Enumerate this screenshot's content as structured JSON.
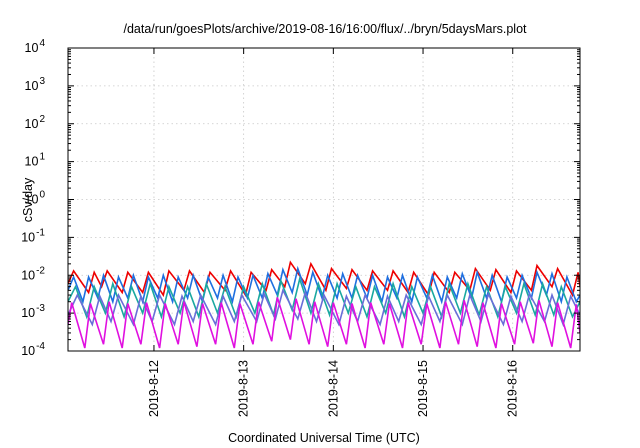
{
  "chart_data": {
    "type": "line",
    "title": "/data/run/goesPlots/archive/2019-08-16/16:00/flux/../bryn/5daysMars.plot",
    "xlabel": "Coordinated Universal Time (UTC)",
    "ylabel": "cSv/day",
    "yscale": "log",
    "ylim": [
      0.0001,
      10000
    ],
    "xlim": [
      "2019-08-11T01:00",
      "2019-08-16T18:00"
    ],
    "grid": true,
    "y_ticks": [
      {
        "value": 0.0001,
        "base": "10",
        "exp": "-4"
      },
      {
        "value": 0.001,
        "base": "10",
        "exp": "-3"
      },
      {
        "value": 0.01,
        "base": "10",
        "exp": "-2"
      },
      {
        "value": 0.1,
        "base": "10",
        "exp": "-1"
      },
      {
        "value": 1,
        "base": "10",
        "exp": "0"
      },
      {
        "value": 10,
        "base": "10",
        "exp": "1"
      },
      {
        "value": 100,
        "base": "10",
        "exp": "2"
      },
      {
        "value": 1000,
        "base": "10",
        "exp": "3"
      },
      {
        "value": 10000,
        "base": "10",
        "exp": "4"
      }
    ],
    "x_ticks": [
      {
        "value": "2019-08-12T00:00",
        "label": "2019-8-12"
      },
      {
        "value": "2019-08-13T00:00",
        "label": "2019-8-13"
      },
      {
        "value": "2019-08-14T00:00",
        "label": "2019-8-14"
      },
      {
        "value": "2019-08-15T00:00",
        "label": "2019-8-15"
      },
      {
        "value": "2019-08-16T00:00",
        "label": "2019-8-16"
      }
    ],
    "series": [
      {
        "color": "#ee0000",
        "x": [
          "2019-08-11T01:00",
          "2019-08-11T02:30",
          "2019-08-11T06:30",
          "2019-08-11T08:00",
          "2019-08-11T10:00",
          "2019-08-11T11:30",
          "2019-08-11T15:30",
          "2019-08-11T17:00",
          "2019-08-11T21:00",
          "2019-08-11T22:30",
          "2019-08-12T02:30",
          "2019-08-12T04:00",
          "2019-08-12T08:00",
          "2019-08-12T09:30",
          "2019-08-12T13:30",
          "2019-08-12T15:00",
          "2019-08-12T19:00",
          "2019-08-12T20:30",
          "2019-08-13T00:30",
          "2019-08-13T02:00",
          "2019-08-13T06:00",
          "2019-08-13T07:30",
          "2019-08-13T11:00",
          "2019-08-13T12:30",
          "2019-08-13T16:30",
          "2019-08-13T18:00",
          "2019-08-13T22:00",
          "2019-08-13T23:30",
          "2019-08-14T03:30",
          "2019-08-14T05:00",
          "2019-08-14T09:00",
          "2019-08-14T10:30",
          "2019-08-14T14:30",
          "2019-08-14T16:00",
          "2019-08-14T20:00",
          "2019-08-14T21:30",
          "2019-08-15T01:30",
          "2019-08-15T03:00",
          "2019-08-15T07:00",
          "2019-08-15T08:30",
          "2019-08-15T12:30",
          "2019-08-15T14:00",
          "2019-08-15T18:00",
          "2019-08-15T19:30",
          "2019-08-15T23:30",
          "2019-08-16T01:00",
          "2019-08-16T05:00",
          "2019-08-16T06:30",
          "2019-08-16T10:30",
          "2019-08-16T12:00",
          "2019-08-16T16:00",
          "2019-08-16T17:30",
          "2019-08-16T18:00"
        ],
        "y": [
          0.006,
          0.013,
          0.0035,
          0.012,
          0.005,
          0.013,
          0.0035,
          0.012,
          0.0035,
          0.012,
          0.003,
          0.013,
          0.004,
          0.013,
          0.0035,
          0.012,
          0.004,
          0.013,
          0.003,
          0.012,
          0.004,
          0.014,
          0.005,
          0.022,
          0.006,
          0.02,
          0.004,
          0.015,
          0.0045,
          0.014,
          0.004,
          0.013,
          0.004,
          0.013,
          0.0035,
          0.012,
          0.003,
          0.012,
          0.0035,
          0.012,
          0.004,
          0.015,
          0.004,
          0.014,
          0.0035,
          0.013,
          0.004,
          0.018,
          0.005,
          0.015,
          0.003,
          0.012,
          0.005
        ]
      },
      {
        "color": "#1e6fe0",
        "x": [
          "2019-08-11T01:00",
          "2019-08-11T02:30",
          "2019-08-11T05:00",
          "2019-08-11T06:30",
          "2019-08-11T09:00",
          "2019-08-11T10:30",
          "2019-08-11T13:00",
          "2019-08-11T14:30",
          "2019-08-11T17:00",
          "2019-08-11T18:30",
          "2019-08-11T21:00",
          "2019-08-11T22:30",
          "2019-08-12T01:00",
          "2019-08-12T02:30",
          "2019-08-12T05:00",
          "2019-08-12T06:30",
          "2019-08-12T09:00",
          "2019-08-12T10:30",
          "2019-08-12T13:00",
          "2019-08-12T14:30",
          "2019-08-12T17:00",
          "2019-08-12T18:30",
          "2019-08-12T21:00",
          "2019-08-12T22:30",
          "2019-08-13T01:00",
          "2019-08-13T02:30",
          "2019-08-13T05:00",
          "2019-08-13T06:30",
          "2019-08-13T09:00",
          "2019-08-13T10:30",
          "2019-08-13T13:00",
          "2019-08-13T14:30",
          "2019-08-13T17:00",
          "2019-08-13T18:30",
          "2019-08-13T21:00",
          "2019-08-13T22:30",
          "2019-08-14T01:00",
          "2019-08-14T02:30",
          "2019-08-14T05:00",
          "2019-08-14T06:30",
          "2019-08-14T09:00",
          "2019-08-14T10:30",
          "2019-08-14T13:00",
          "2019-08-14T14:30",
          "2019-08-14T17:00",
          "2019-08-14T18:30",
          "2019-08-14T21:00",
          "2019-08-14T22:30",
          "2019-08-15T01:00",
          "2019-08-15T02:30",
          "2019-08-15T05:00",
          "2019-08-15T06:30",
          "2019-08-15T09:00",
          "2019-08-15T10:30",
          "2019-08-15T13:00",
          "2019-08-15T14:30",
          "2019-08-15T17:00",
          "2019-08-15T18:30",
          "2019-08-15T21:00",
          "2019-08-15T22:30",
          "2019-08-16T01:00",
          "2019-08-16T02:30",
          "2019-08-16T05:00",
          "2019-08-16T06:30",
          "2019-08-16T09:00",
          "2019-08-16T10:30",
          "2019-08-16T13:00",
          "2019-08-16T14:30",
          "2019-08-16T17:00",
          "2019-08-16T18:00"
        ],
        "y": [
          0.004,
          0.009,
          0.002,
          0.009,
          0.0025,
          0.01,
          0.002,
          0.009,
          0.0025,
          0.01,
          0.002,
          0.009,
          0.0025,
          0.01,
          0.002,
          0.009,
          0.0025,
          0.01,
          0.002,
          0.009,
          0.0025,
          0.01,
          0.002,
          0.009,
          0.0025,
          0.01,
          0.0025,
          0.011,
          0.003,
          0.014,
          0.0035,
          0.015,
          0.003,
          0.012,
          0.0025,
          0.01,
          0.0025,
          0.011,
          0.0025,
          0.01,
          0.0025,
          0.01,
          0.002,
          0.009,
          0.0025,
          0.01,
          0.002,
          0.009,
          0.0025,
          0.01,
          0.002,
          0.009,
          0.0025,
          0.011,
          0.0025,
          0.012,
          0.0025,
          0.01,
          0.002,
          0.009,
          0.0025,
          0.01,
          0.0025,
          0.012,
          0.003,
          0.011,
          0.002,
          0.009,
          0.002,
          0.003
        ]
      },
      {
        "color": "#1aa8a0",
        "x": [
          "2019-08-11T01:00",
          "2019-08-11T03:00",
          "2019-08-11T06:00",
          "2019-08-11T08:00",
          "2019-08-11T11:00",
          "2019-08-11T13:00",
          "2019-08-11T16:00",
          "2019-08-11T18:00",
          "2019-08-11T21:00",
          "2019-08-11T23:00",
          "2019-08-12T02:00",
          "2019-08-12T04:00",
          "2019-08-12T07:00",
          "2019-08-12T09:00",
          "2019-08-12T12:00",
          "2019-08-12T14:00",
          "2019-08-12T17:00",
          "2019-08-12T19:00",
          "2019-08-12T22:00",
          "2019-08-13T00:00",
          "2019-08-13T03:00",
          "2019-08-13T05:00",
          "2019-08-13T08:00",
          "2019-08-13T10:00",
          "2019-08-13T13:00",
          "2019-08-13T15:00",
          "2019-08-13T18:00",
          "2019-08-13T20:00",
          "2019-08-13T23:00",
          "2019-08-14T01:00",
          "2019-08-14T04:00",
          "2019-08-14T06:00",
          "2019-08-14T09:00",
          "2019-08-14T11:00",
          "2019-08-14T14:00",
          "2019-08-14T16:00",
          "2019-08-14T19:00",
          "2019-08-14T21:00",
          "2019-08-15T00:00",
          "2019-08-15T02:00",
          "2019-08-15T05:00",
          "2019-08-15T07:00",
          "2019-08-15T10:00",
          "2019-08-15T12:00",
          "2019-08-15T15:00",
          "2019-08-15T17:00",
          "2019-08-15T20:00",
          "2019-08-15T22:00",
          "2019-08-16T01:00",
          "2019-08-16T03:00",
          "2019-08-16T06:00",
          "2019-08-16T08:00",
          "2019-08-16T11:00",
          "2019-08-16T13:00",
          "2019-08-16T16:00",
          "2019-08-16T18:00"
        ],
        "y": [
          0.002,
          0.005,
          0.0008,
          0.005,
          0.001,
          0.006,
          0.0008,
          0.005,
          0.001,
          0.006,
          0.0008,
          0.005,
          0.001,
          0.005,
          0.0008,
          0.006,
          0.001,
          0.005,
          0.0008,
          0.005,
          0.001,
          0.006,
          0.0009,
          0.007,
          0.0012,
          0.008,
          0.001,
          0.006,
          0.0009,
          0.006,
          0.001,
          0.005,
          0.0008,
          0.005,
          0.001,
          0.006,
          0.0008,
          0.005,
          0.001,
          0.005,
          0.0008,
          0.006,
          0.001,
          0.006,
          0.0009,
          0.005,
          0.0008,
          0.005,
          0.001,
          0.006,
          0.0009,
          0.006,
          0.0009,
          0.005,
          0.0008,
          0.002
        ]
      },
      {
        "color": "#6a6ed8",
        "x": [
          "2019-08-11T01:00",
          "2019-08-11T03:30",
          "2019-08-11T07:30",
          "2019-08-11T09:30",
          "2019-08-11T12:30",
          "2019-08-11T14:30",
          "2019-08-11T18:30",
          "2019-08-11T20:30",
          "2019-08-11T23:30",
          "2019-08-12T01:30",
          "2019-08-12T05:30",
          "2019-08-12T07:30",
          "2019-08-12T10:30",
          "2019-08-12T12:30",
          "2019-08-12T16:30",
          "2019-08-12T18:30",
          "2019-08-12T21:30",
          "2019-08-12T23:30",
          "2019-08-13T03:30",
          "2019-08-13T05:30",
          "2019-08-13T08:30",
          "2019-08-13T10:30",
          "2019-08-13T14:30",
          "2019-08-13T16:30",
          "2019-08-13T19:30",
          "2019-08-13T21:30",
          "2019-08-14T01:30",
          "2019-08-14T03:30",
          "2019-08-14T06:30",
          "2019-08-14T08:30",
          "2019-08-14T12:30",
          "2019-08-14T14:30",
          "2019-08-14T17:30",
          "2019-08-14T19:30",
          "2019-08-14T23:30",
          "2019-08-15T01:30",
          "2019-08-15T04:30",
          "2019-08-15T06:30",
          "2019-08-15T10:30",
          "2019-08-15T12:30",
          "2019-08-15T15:30",
          "2019-08-15T17:30",
          "2019-08-15T21:30",
          "2019-08-15T23:30",
          "2019-08-16T02:30",
          "2019-08-16T04:30",
          "2019-08-16T08:30",
          "2019-08-16T10:30",
          "2019-08-16T13:30",
          "2019-08-16T15:30",
          "2019-08-16T18:00"
        ],
        "y": [
          0.0009,
          0.003,
          0.0005,
          0.0028,
          0.0006,
          0.003,
          0.0005,
          0.0028,
          0.0006,
          0.003,
          0.0005,
          0.0028,
          0.0006,
          0.003,
          0.0005,
          0.0028,
          0.0006,
          0.003,
          0.0006,
          0.0032,
          0.0007,
          0.004,
          0.0007,
          0.0035,
          0.0006,
          0.003,
          0.0005,
          0.0028,
          0.0006,
          0.003,
          0.0005,
          0.0028,
          0.0006,
          0.003,
          0.0005,
          0.0028,
          0.0006,
          0.003,
          0.0005,
          0.003,
          0.0006,
          0.0032,
          0.0005,
          0.0028,
          0.0006,
          0.0032,
          0.0006,
          0.003,
          0.0005,
          0.0028,
          0.0009
        ]
      },
      {
        "color": "#e010e0",
        "x": [
          "2019-08-11T01:00",
          "2019-08-11T02:00",
          "2019-08-11T05:30",
          "2019-08-11T07:00",
          "2019-08-11T10:30",
          "2019-08-11T12:00",
          "2019-08-11T15:30",
          "2019-08-11T17:00",
          "2019-08-11T20:30",
          "2019-08-11T22:00",
          "2019-08-12T01:30",
          "2019-08-12T03:00",
          "2019-08-12T06:30",
          "2019-08-12T08:00",
          "2019-08-12T11:30",
          "2019-08-12T13:00",
          "2019-08-12T16:30",
          "2019-08-12T18:00",
          "2019-08-12T21:30",
          "2019-08-12T23:00",
          "2019-08-13T02:30",
          "2019-08-13T04:00",
          "2019-08-13T07:30",
          "2019-08-13T09:00",
          "2019-08-13T12:30",
          "2019-08-13T14:00",
          "2019-08-13T17:30",
          "2019-08-13T19:00",
          "2019-08-13T22:30",
          "2019-08-14T00:00",
          "2019-08-14T03:30",
          "2019-08-14T05:00",
          "2019-08-14T08:30",
          "2019-08-14T10:00",
          "2019-08-14T13:30",
          "2019-08-14T15:00",
          "2019-08-14T18:30",
          "2019-08-14T20:00",
          "2019-08-14T23:30",
          "2019-08-15T01:00",
          "2019-08-15T04:30",
          "2019-08-15T06:00",
          "2019-08-15T09:30",
          "2019-08-15T11:00",
          "2019-08-15T14:30",
          "2019-08-15T16:00",
          "2019-08-15T19:30",
          "2019-08-15T21:00",
          "2019-08-16T00:30",
          "2019-08-16T02:00",
          "2019-08-16T05:30",
          "2019-08-16T07:00",
          "2019-08-16T10:30",
          "2019-08-16T12:00",
          "2019-08-16T15:30",
          "2019-08-16T17:00",
          "2019-08-16T18:00"
        ],
        "y": [
          0.0005,
          0.0019,
          0.00012,
          0.0018,
          0.00015,
          0.002,
          0.00012,
          0.0018,
          0.00015,
          0.0019,
          0.00012,
          0.0018,
          0.00015,
          0.002,
          0.00013,
          0.0018,
          0.00015,
          0.0019,
          0.00012,
          0.0018,
          0.00015,
          0.002,
          0.00018,
          0.0026,
          0.0002,
          0.0024,
          0.00015,
          0.002,
          0.00013,
          0.0019,
          0.00015,
          0.0018,
          0.00012,
          0.0019,
          0.00015,
          0.0018,
          0.00012,
          0.0019,
          0.00015,
          0.0018,
          0.00012,
          0.002,
          0.00015,
          0.0022,
          0.00013,
          0.0019,
          0.00012,
          0.0018,
          0.00015,
          0.002,
          0.00016,
          0.0022,
          0.00013,
          0.0019,
          0.00012,
          0.0017,
          0.0003
        ]
      }
    ]
  }
}
